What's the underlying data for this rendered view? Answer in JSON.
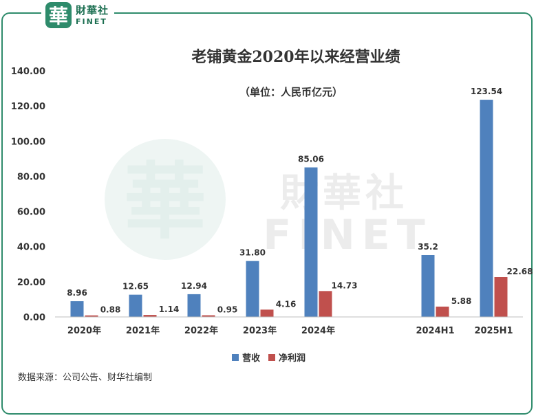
{
  "brand": {
    "badge": "華",
    "name": "財華社",
    "name_en": "FINET"
  },
  "watermark": {
    "glyph": "華",
    "name": "財華社",
    "name_en": "FINET"
  },
  "source_note": "数据来源：公司公告、财华社编制",
  "colors": {
    "revenue": "#4f81bd",
    "net_profit": "#c0504d",
    "frame": "#2e8b6b"
  },
  "chart_data": {
    "type": "bar",
    "title": "老铺黄金2020年以来经营业绩",
    "subtitle": "（单位：人民币亿元）",
    "categories": [
      "2020年",
      "2021年",
      "2022年",
      "2023年",
      "2024年",
      "",
      "2024H1",
      "2025H1"
    ],
    "series": [
      {
        "name": "营收",
        "values": [
          8.96,
          12.65,
          12.94,
          31.8,
          85.06,
          null,
          35.2,
          123.54
        ],
        "labels": [
          "8.96",
          "12.65",
          "12.94",
          "31.80",
          "85.06",
          "",
          "35.2",
          "123.54"
        ]
      },
      {
        "name": "净利润",
        "values": [
          0.88,
          1.14,
          0.95,
          4.16,
          14.73,
          null,
          5.88,
          22.68
        ],
        "labels": [
          "0.88",
          "1.14",
          "0.95",
          "4.16",
          "14.73",
          "",
          "5.88",
          "22.68"
        ]
      }
    ],
    "yticks": [
      "0.00",
      "20.00",
      "40.00",
      "60.00",
      "80.00",
      "100.00",
      "120.00",
      "140.00"
    ],
    "ylim": [
      0,
      140
    ],
    "grid": false,
    "legend": "bottom"
  }
}
